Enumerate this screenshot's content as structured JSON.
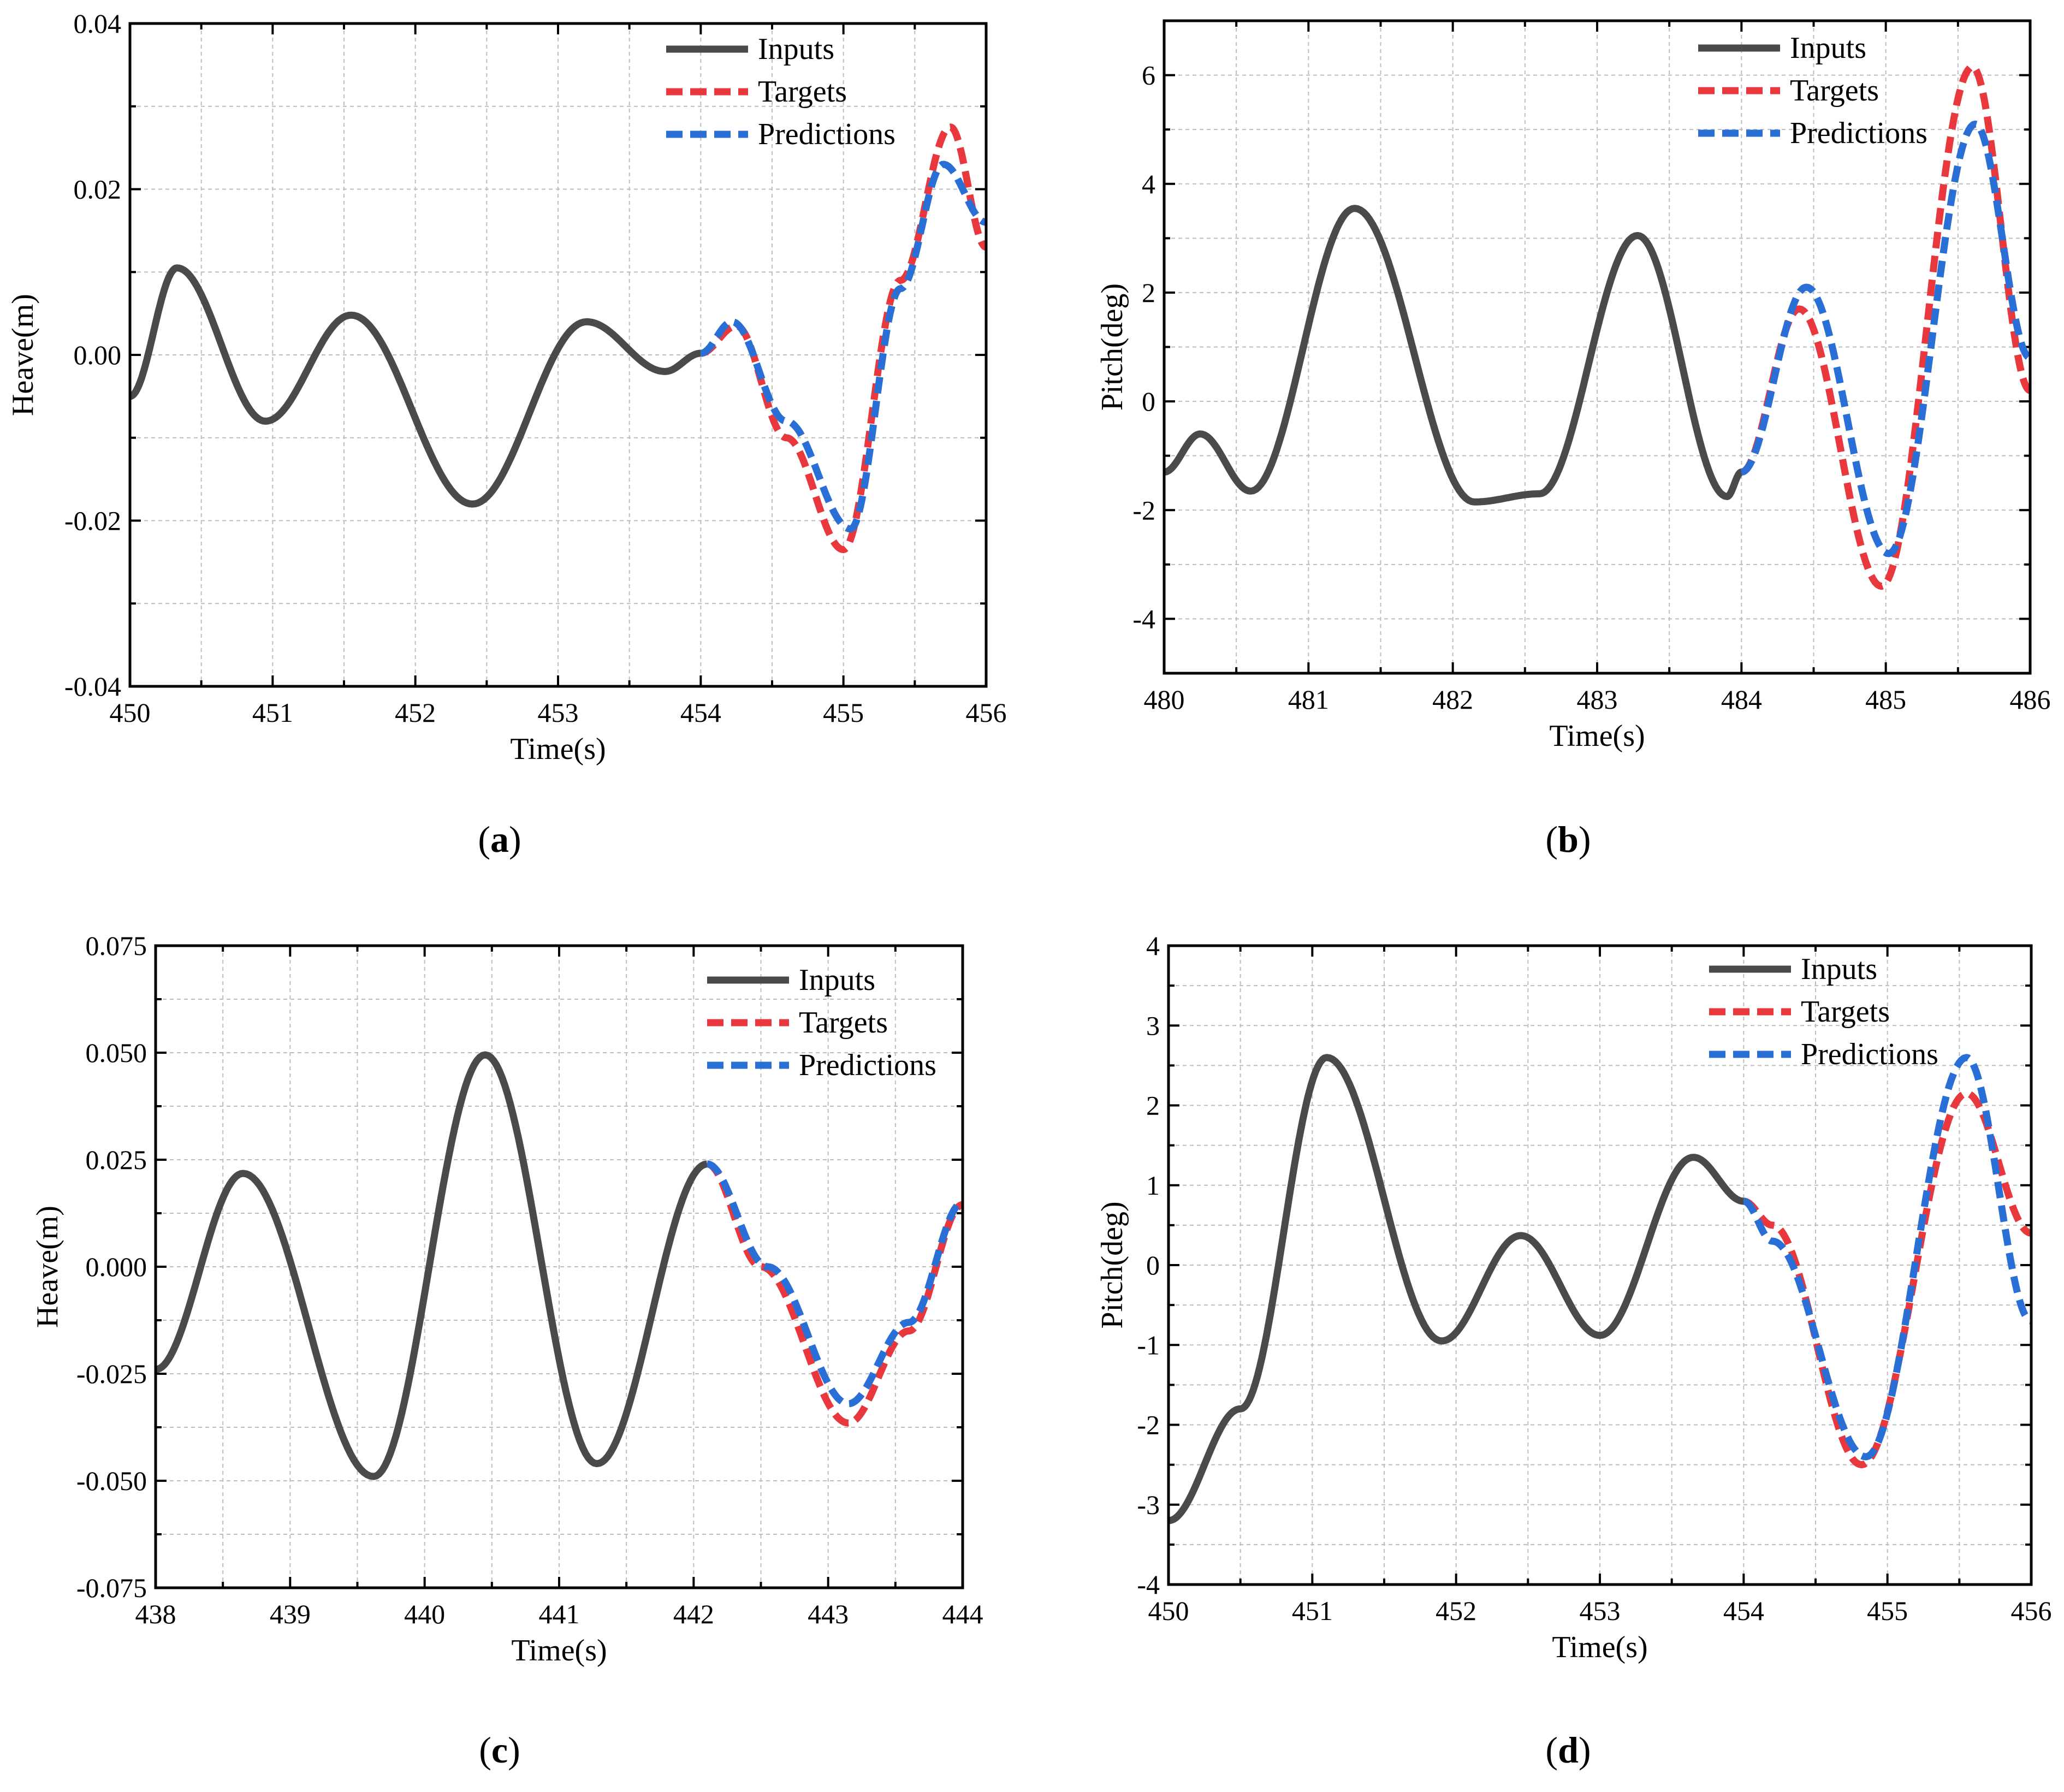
{
  "figure": {
    "legend": [
      "Inputs",
      "Targets",
      "Predictions"
    ],
    "colors": {
      "inputs": "#4a4a4a",
      "targets": "#e8383d",
      "predictions": "#2a6fd6",
      "grid": "#bdbdbd"
    }
  },
  "chart_data": [
    {
      "id": "a",
      "type": "line",
      "caption": "a",
      "xlabel": "Time(s)",
      "ylabel": "Heave(m)",
      "xlim": [
        450,
        456
      ],
      "ylim": [
        -0.04,
        0.04
      ],
      "xticks": [
        450,
        451,
        452,
        453,
        454,
        455,
        456
      ],
      "yticks": [
        -0.04,
        -0.02,
        0.0,
        0.02,
        0.04
      ],
      "ytick_labels": [
        "-0.04",
        "-0.02",
        "0.00",
        "0.02",
        "0.04"
      ],
      "legend_position": "top-right",
      "grid": true,
      "series": [
        {
          "name": "Inputs",
          "style": "solid",
          "x": [
            450,
            450.33,
            450.95,
            451.55,
            452.4,
            453.2,
            453.75,
            454.0
          ],
          "y": [
            -0.005,
            0.0105,
            -0.008,
            0.0048,
            -0.018,
            0.004,
            -0.002,
            0.0002
          ]
        },
        {
          "name": "Targets",
          "style": "dashed",
          "x": [
            454.0,
            454.25,
            454.6,
            455.0,
            455.4,
            455.75,
            456.0
          ],
          "y": [
            0.0002,
            0.0035,
            -0.01,
            -0.0235,
            0.009,
            0.0275,
            0.013
          ]
        },
        {
          "name": "Predictions",
          "style": "dashed",
          "x": [
            454.0,
            454.22,
            454.6,
            455.05,
            455.4,
            455.7,
            456.0
          ],
          "y": [
            0.0002,
            0.004,
            -0.008,
            -0.021,
            0.008,
            0.023,
            0.016
          ]
        }
      ]
    },
    {
      "id": "b",
      "type": "line",
      "caption": "b",
      "xlabel": "Time(s)",
      "ylabel": "Pitch(deg)",
      "xlim": [
        480,
        486
      ],
      "ylim": [
        -5,
        7
      ],
      "xticks": [
        480,
        481,
        482,
        483,
        484,
        485,
        486
      ],
      "yticks": [
        -4,
        -2,
        0,
        2,
        4,
        6
      ],
      "ytick_labels": [
        "-4",
        "-2",
        "0",
        "2",
        "4",
        "6"
      ],
      "legend_position": "top-right",
      "grid": true,
      "series": [
        {
          "name": "Inputs",
          "style": "solid",
          "x": [
            480,
            480.25,
            480.6,
            481.32,
            482.15,
            482.6,
            483.28,
            483.9,
            484.0
          ],
          "y": [
            -1.3,
            -0.6,
            -1.65,
            3.55,
            -1.85,
            -1.7,
            3.05,
            -1.75,
            -1.3
          ]
        },
        {
          "name": "Targets",
          "style": "dashed",
          "x": [
            484.0,
            484.4,
            484.97,
            485.6,
            486.0
          ],
          "y": [
            -1.3,
            1.7,
            -3.4,
            6.15,
            0.2
          ]
        },
        {
          "name": "Predictions",
          "style": "dashed",
          "x": [
            484.0,
            484.45,
            485.02,
            485.62,
            486.0
          ],
          "y": [
            -1.3,
            2.1,
            -2.8,
            5.1,
            0.8
          ]
        }
      ]
    },
    {
      "id": "c",
      "type": "line",
      "caption": "c",
      "xlabel": "Time(s)",
      "ylabel": "Heave(m)",
      "xlim": [
        438,
        444
      ],
      "ylim": [
        -0.075,
        0.075
      ],
      "xticks": [
        438,
        439,
        440,
        441,
        442,
        443,
        444
      ],
      "yticks": [
        -0.075,
        -0.05,
        -0.025,
        0.0,
        0.025,
        0.05,
        0.075
      ],
      "ytick_labels": [
        "-0.075",
        "-0.050",
        "-0.025",
        "0.000",
        "0.025",
        "0.050",
        "0.075"
      ],
      "legend_position": "top-right",
      "grid": true,
      "series": [
        {
          "name": "Inputs",
          "style": "solid",
          "x": [
            438,
            438.65,
            439.62,
            440.45,
            441.28,
            442.1
          ],
          "y": [
            -0.024,
            0.0218,
            -0.049,
            0.0495,
            -0.046,
            0.024
          ]
        },
        {
          "name": "Targets",
          "style": "dashed",
          "x": [
            442.1,
            442.5,
            443.15,
            443.6,
            444.0
          ],
          "y": [
            0.024,
            0.0,
            -0.0365,
            -0.015,
            0.0145
          ]
        },
        {
          "name": "Predictions",
          "style": "dashed",
          "x": [
            442.1,
            442.55,
            443.15,
            443.6,
            444.0
          ],
          "y": [
            0.024,
            0.0,
            -0.032,
            -0.013,
            0.015
          ]
        }
      ]
    },
    {
      "id": "d",
      "type": "line",
      "caption": "d",
      "xlabel": "Time(s)",
      "ylabel": "Pitch(deg)",
      "xlim": [
        450,
        456
      ],
      "ylim": [
        -4,
        4
      ],
      "xticks": [
        450,
        451,
        452,
        453,
        454,
        455,
        456
      ],
      "yticks": [
        -4,
        -3,
        -2,
        -1,
        0,
        1,
        2,
        3,
        4
      ],
      "ytick_labels": [
        "-4",
        "-3",
        "-2",
        "-1",
        "0",
        "1",
        "2",
        "3",
        "4"
      ],
      "legend_position": "top-right",
      "grid": true,
      "series": [
        {
          "name": "Inputs",
          "style": "solid",
          "x": [
            450,
            450.5,
            451.1,
            451.9,
            452.45,
            453.0,
            453.65,
            454.0
          ],
          "y": [
            -3.2,
            -1.8,
            2.6,
            -0.95,
            0.37,
            -0.88,
            1.35,
            0.8
          ]
        },
        {
          "name": "Targets",
          "style": "dashed",
          "x": [
            454.0,
            454.2,
            454.82,
            455.55,
            456.0
          ],
          "y": [
            0.8,
            0.5,
            -2.5,
            2.15,
            0.4
          ]
        },
        {
          "name": "Predictions",
          "style": "dashed",
          "x": [
            454.0,
            454.2,
            454.85,
            455.55,
            456.0
          ],
          "y": [
            0.8,
            0.3,
            -2.4,
            2.6,
            -0.7
          ]
        }
      ]
    }
  ]
}
